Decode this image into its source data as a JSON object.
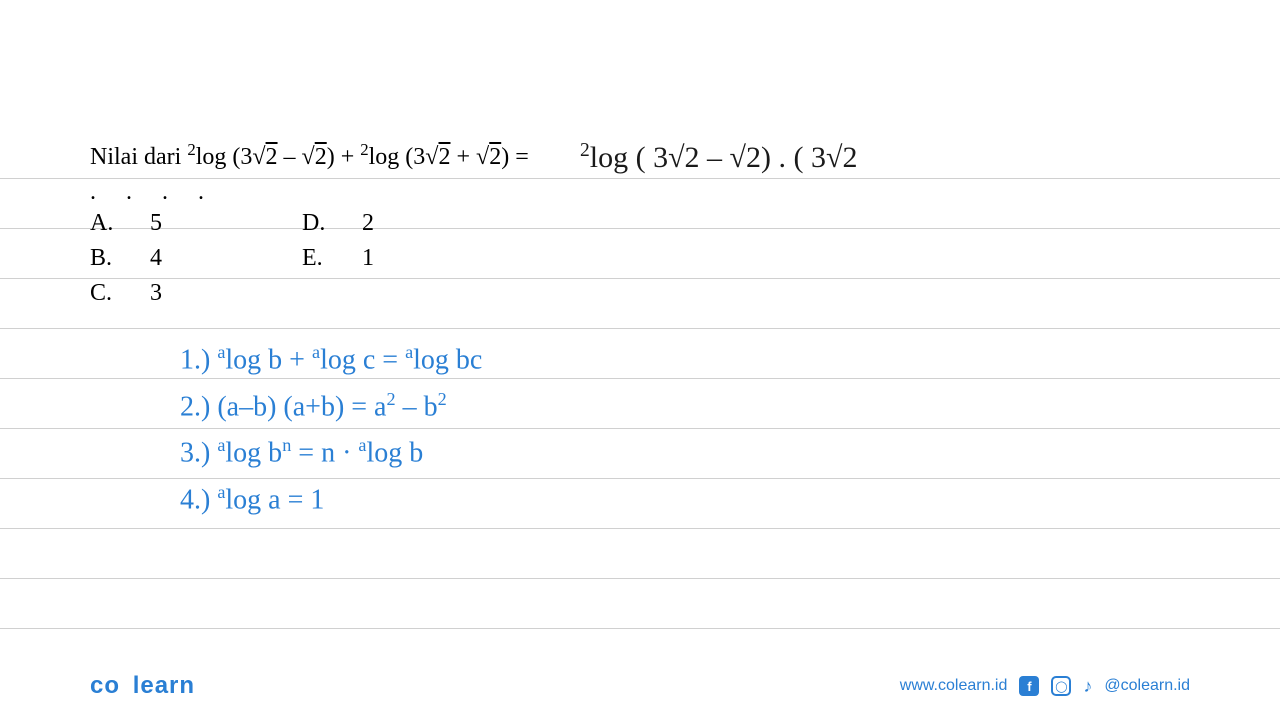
{
  "question": {
    "prefix": "Nilai dari ",
    "expression_html": "<span class='sup'>2</span>log (3√<span class='sqrt'>2</span> – √<span class='sqrt'>2</span>) + <span class='sup'>2</span>log (3√<span class='sqrt'>2</span> + √<span class='sqrt'>2</span>) =",
    "dots": ". . . ."
  },
  "answers": {
    "col1": [
      {
        "letter": "A.",
        "value": "5"
      },
      {
        "letter": "B.",
        "value": "4"
      },
      {
        "letter": "C.",
        "value": "3"
      }
    ],
    "col2": [
      {
        "letter": "D.",
        "value": "2"
      },
      {
        "letter": "E.",
        "value": "1"
      }
    ]
  },
  "handwritten_answer_html": "<span class='hw-sup'>2</span>log ( 3√2 – √2) . ( 3√2",
  "handwritten_rules": [
    "1.) <span class='hw-sup'>a</span>log b + <span class='hw-sup'>a</span>log c = <span class='hw-sup'>a</span>log bc",
    "2.) (a–b) (a+b) = a<span class='hw-sup'>2</span> – b<span class='hw-sup'>2</span>",
    "3.) <span class='hw-sup'>a</span>log b<span class='hw-sup'>n</span> = n · <span class='hw-sup'>a</span>log b",
    "4.) <span class='hw-sup'>a</span>log a = 1"
  ],
  "footer": {
    "logo": "co learn",
    "url": "www.colearn.id",
    "handle": "@colearn.id"
  },
  "ruled_line_positions": [
    178,
    228,
    278,
    328,
    378,
    428,
    478,
    528,
    578,
    628
  ],
  "colors": {
    "ruled_line": "#d0d0d0",
    "text_black": "#000000",
    "handwritten_blue": "#2a7fd4",
    "handwritten_black": "#1a1a1a",
    "brand": "#2a7fd4",
    "background": "#ffffff"
  },
  "typography": {
    "question_fontsize": 24,
    "handwritten_fontsize": 28,
    "handwritten_black_fontsize": 30,
    "logo_fontsize": 24,
    "footer_fontsize": 16
  }
}
